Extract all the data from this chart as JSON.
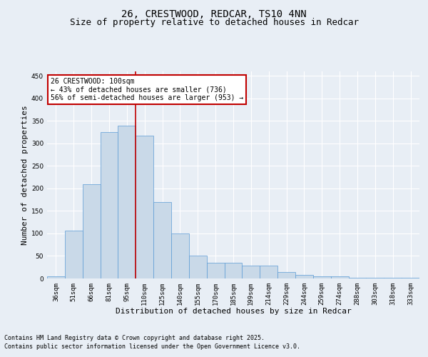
{
  "title_line1": "26, CRESTWOOD, REDCAR, TS10 4NN",
  "title_line2": "Size of property relative to detached houses in Redcar",
  "xlabel": "Distribution of detached houses by size in Redcar",
  "ylabel": "Number of detached properties",
  "categories": [
    "36sqm",
    "51sqm",
    "66sqm",
    "81sqm",
    "95sqm",
    "110sqm",
    "125sqm",
    "140sqm",
    "155sqm",
    "170sqm",
    "185sqm",
    "199sqm",
    "214sqm",
    "229sqm",
    "244sqm",
    "259sqm",
    "274sqm",
    "288sqm",
    "303sqm",
    "318sqm",
    "333sqm"
  ],
  "values": [
    5,
    107,
    210,
    325,
    340,
    318,
    170,
    100,
    50,
    35,
    35,
    29,
    29,
    15,
    8,
    5,
    5,
    1,
    1,
    1,
    1
  ],
  "bar_color": "#c9d9e8",
  "bar_edge_color": "#5b9bd5",
  "bar_width": 1.0,
  "vline_x": 4.5,
  "vline_color": "#c00000",
  "ylim": [
    0,
    460
  ],
  "yticks": [
    0,
    50,
    100,
    150,
    200,
    250,
    300,
    350,
    400,
    450
  ],
  "annotation_text": "26 CRESTWOOD: 100sqm\n← 43% of detached houses are smaller (736)\n56% of semi-detached houses are larger (953) →",
  "annotation_box_color": "#c00000",
  "annotation_text_color": "#000000",
  "footer_line1": "Contains HM Land Registry data © Crown copyright and database right 2025.",
  "footer_line2": "Contains public sector information licensed under the Open Government Licence v3.0.",
  "bg_color": "#e8eef5",
  "plot_bg_color": "#e8eef5",
  "grid_color": "#ffffff",
  "title_fontsize": 10,
  "subtitle_fontsize": 9,
  "axis_label_fontsize": 8,
  "tick_fontsize": 6.5,
  "annotation_fontsize": 7,
  "footer_fontsize": 6
}
